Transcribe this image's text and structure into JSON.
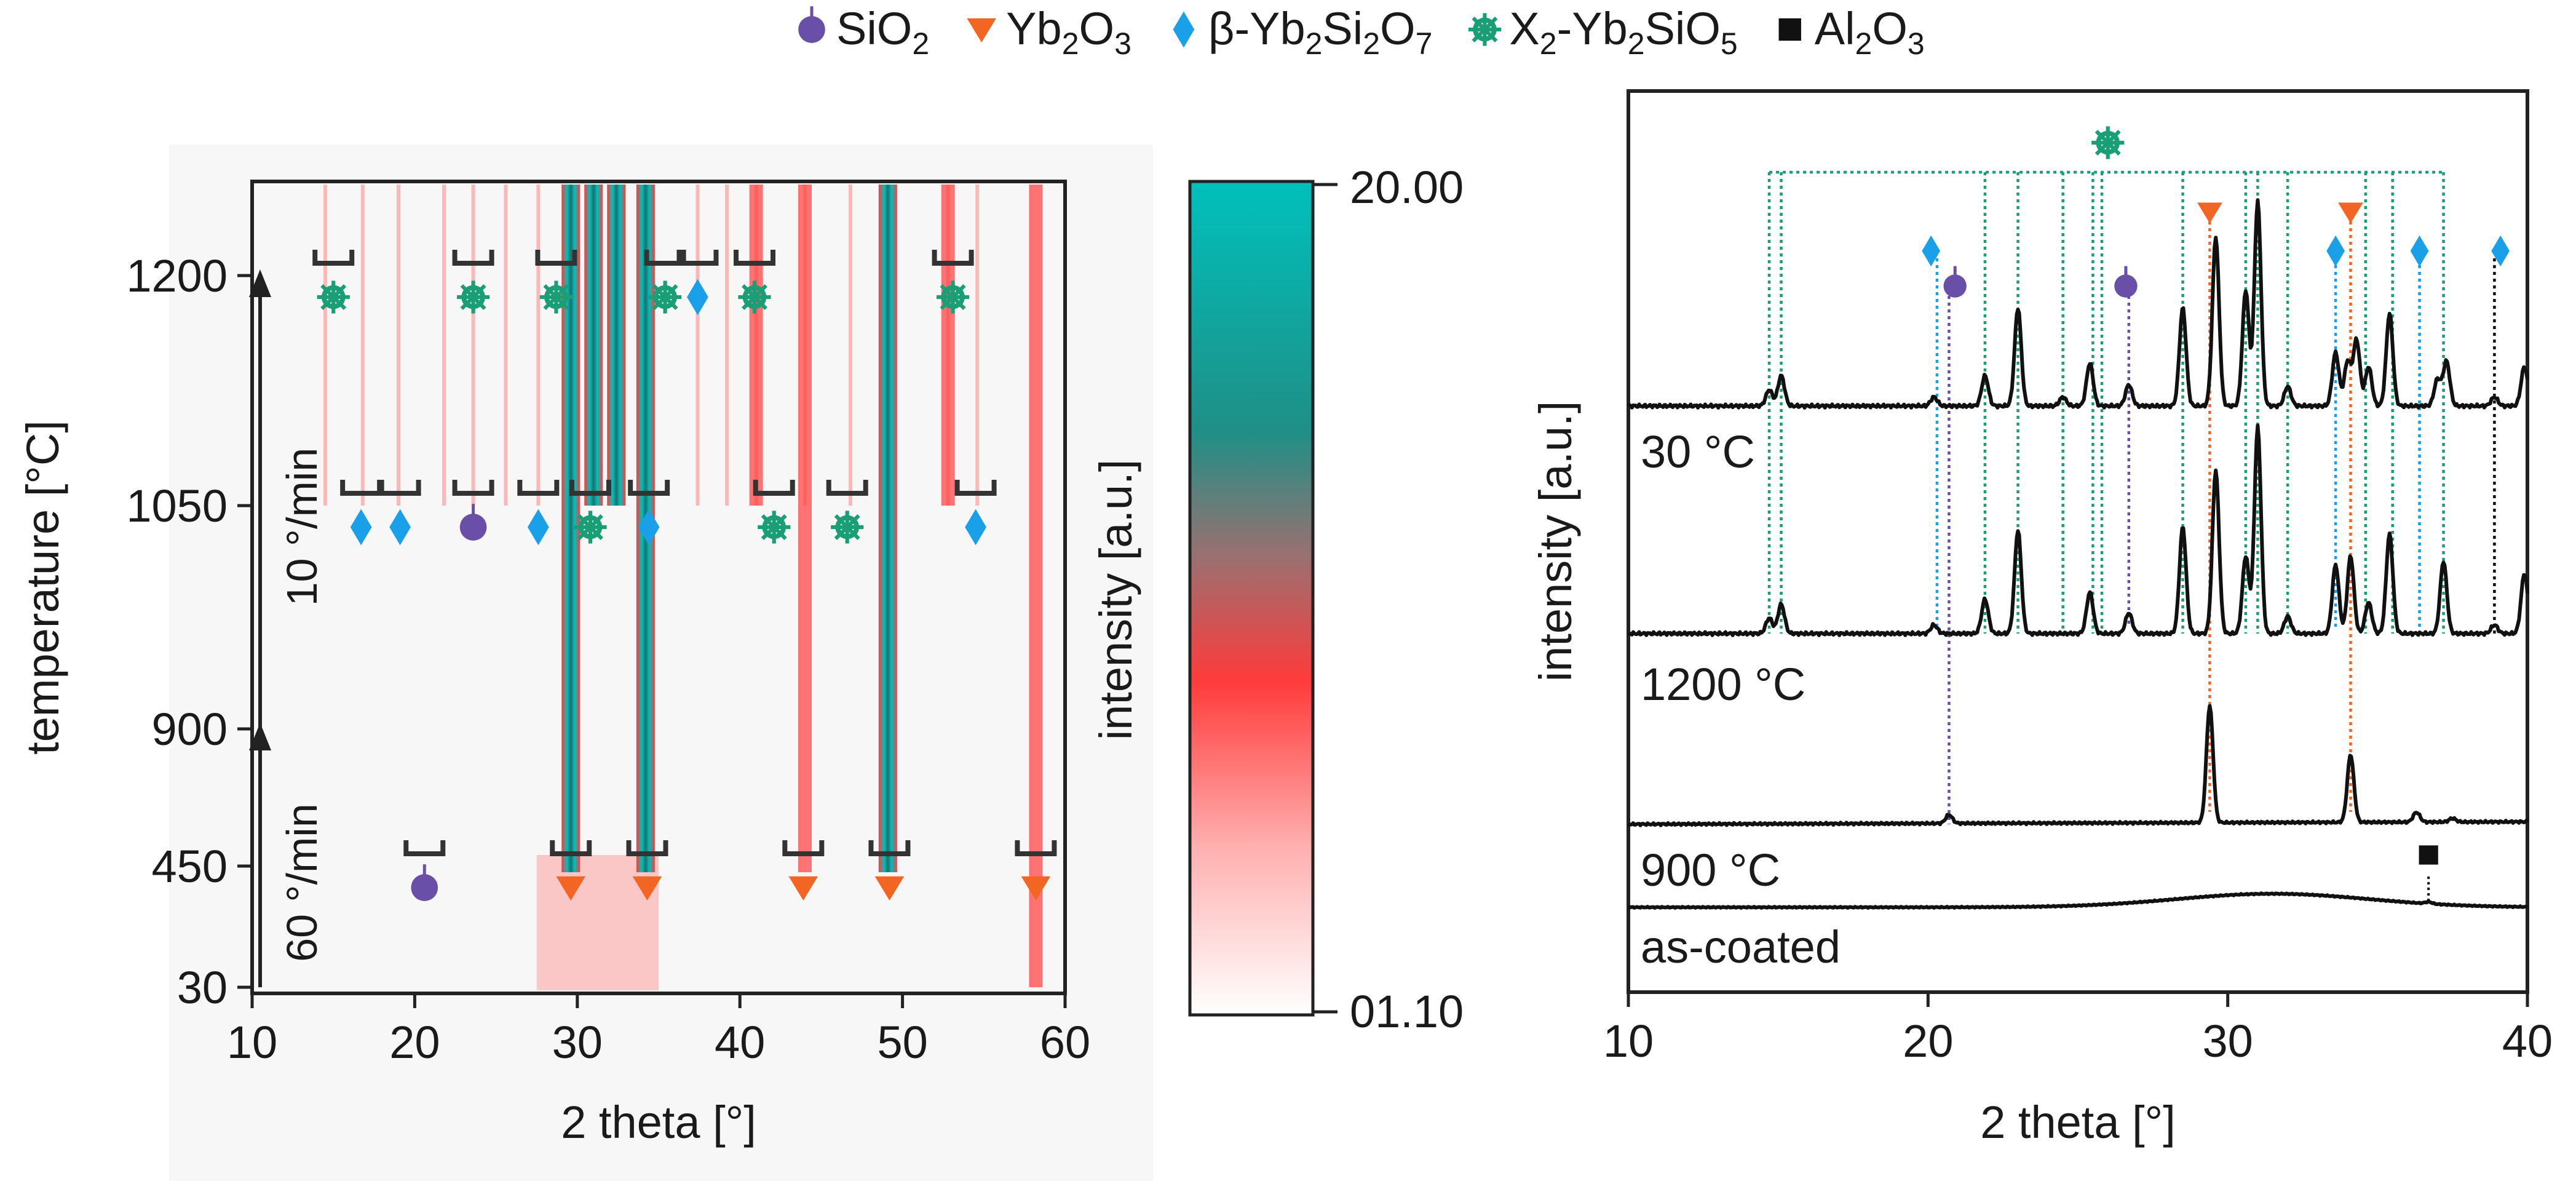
{
  "colors": {
    "sio2": "#6a4fa8",
    "yb2o3": "#f26522",
    "beta": "#1aa0e8",
    "x2": "#1a9e76",
    "al2o3": "#111111",
    "teal": "#00c0bc",
    "red": "#ff3b3b",
    "bracket": "#333333"
  },
  "legend": {
    "items": [
      {
        "id": "sio2",
        "marker": "purple-circle-icon",
        "label": "SiO",
        "sub": "2",
        "label2": "",
        "sub2": ""
      },
      {
        "id": "yb2o3",
        "marker": "orange-triangle-icon",
        "label": "Yb",
        "sub": "2",
        "label2": "O",
        "sub2": "3"
      },
      {
        "id": "beta",
        "marker": "blue-diamond-icon",
        "label": "β-Yb",
        "sub": "2",
        "label2": "Si",
        "sub2": "2",
        "label3": "O",
        "sub3": "7"
      },
      {
        "id": "x2",
        "marker": "green-asterisk-icon",
        "label": "X",
        "sub": "2",
        "label2": "-Yb",
        "sub2": "2",
        "label3": "SiO",
        "sub3": "5"
      },
      {
        "id": "al2o3",
        "marker": "black-square-icon",
        "label": "Al",
        "sub": "2",
        "label2": "O",
        "sub2": "3"
      }
    ]
  },
  "chart_data": [
    {
      "type": "heatmap",
      "title": "",
      "xlabel": "2 theta [°]",
      "ylabel": "temperature [°C]",
      "xlim": [
        10,
        60
      ],
      "x_ticks": [
        10,
        20,
        30,
        40,
        50,
        60
      ],
      "y_ticks": [
        "30",
        "450",
        "900",
        "1050",
        "1200"
      ],
      "colorbar": {
        "label": "intensity [a.u.]",
        "max_label": "20.00",
        "min_label": "01.10",
        "colors": [
          "#00c0bc",
          "#ff3b3b",
          "#ffffff"
        ]
      },
      "ramps": [
        {
          "rate": "60 °/min",
          "from": "30",
          "to": "900"
        },
        {
          "rate": "10 °/min",
          "from": "900",
          "to": "1200"
        }
      ],
      "intense_lines": [
        {
          "x": 29.6,
          "from": "450",
          "to": "1200",
          "level": "high"
        },
        {
          "x": 34.2,
          "from": "450",
          "to": "1200",
          "level": "high"
        },
        {
          "x": 49.1,
          "from": "450",
          "to": "1200",
          "level": "high"
        },
        {
          "x": 31.0,
          "from": "1050",
          "to": "1200",
          "level": "high"
        },
        {
          "x": 32.4,
          "from": "1050",
          "to": "1200",
          "level": "high"
        },
        {
          "x": 58.2,
          "from": "30",
          "to": "1200",
          "level": "medium"
        },
        {
          "x": 44.0,
          "from": "450",
          "to": "1200",
          "level": "medium"
        },
        {
          "x": 52.8,
          "from": "1050",
          "to": "1200",
          "level": "medium"
        },
        {
          "x": 41.0,
          "from": "1050",
          "to": "1200",
          "level": "medium"
        }
      ],
      "annotations": [
        {
          "level": "1200",
          "phase": "x2",
          "x": [
            15.0
          ]
        },
        {
          "level": "1200",
          "phase": "x2",
          "x": [
            23.6
          ]
        },
        {
          "level": "1200",
          "phase": "x2",
          "x": [
            28.7
          ]
        },
        {
          "level": "1200",
          "phase": "x2",
          "x": [
            35.4
          ]
        },
        {
          "level": "1200",
          "phase": "beta",
          "x": [
            37.4
          ]
        },
        {
          "level": "1200",
          "phase": "x2",
          "x": [
            40.9
          ]
        },
        {
          "level": "1200",
          "phase": "x2",
          "x": [
            53.1
          ]
        },
        {
          "level": "1050",
          "phase": "beta",
          "x": [
            16.7
          ]
        },
        {
          "level": "1050",
          "phase": "beta",
          "x": [
            19.1
          ]
        },
        {
          "level": "1050",
          "phase": "sio2",
          "x": [
            23.6
          ]
        },
        {
          "level": "1050",
          "phase": "beta",
          "x": [
            27.6
          ]
        },
        {
          "level": "1050",
          "phase": "x2",
          "x": [
            30.8
          ]
        },
        {
          "level": "1050",
          "phase": "beta",
          "x": [
            34.4
          ]
        },
        {
          "level": "1050",
          "phase": "x2",
          "x": [
            42.1
          ]
        },
        {
          "level": "1050",
          "phase": "x2",
          "x": [
            46.6
          ]
        },
        {
          "level": "1050",
          "phase": "beta",
          "x": [
            54.5
          ]
        },
        {
          "level": "450",
          "phase": "sio2",
          "x": [
            20.6
          ]
        },
        {
          "level": "450",
          "phase": "yb2o3",
          "x": [
            29.6
          ]
        },
        {
          "level": "450",
          "phase": "yb2o3",
          "x": [
            34.3
          ]
        },
        {
          "level": "450",
          "phase": "yb2o3",
          "x": [
            43.9
          ]
        },
        {
          "level": "450",
          "phase": "yb2o3",
          "x": [
            49.2
          ]
        },
        {
          "level": "450",
          "phase": "yb2o3",
          "x": [
            58.2
          ]
        }
      ]
    },
    {
      "type": "line",
      "title": "",
      "xlabel": "2 theta [°]",
      "ylabel": "intensity [a.u.]",
      "xlim": [
        10,
        40
      ],
      "x_ticks": [
        10,
        20,
        30,
        40
      ],
      "series": [
        {
          "name": "30 °C",
          "baseline": 0.35,
          "peaks": [
            [
              14.7,
              0.09
            ],
            [
              15.1,
              0.17
            ],
            [
              20.2,
              0.05
            ],
            [
              21.9,
              0.17
            ],
            [
              23.0,
              0.55
            ],
            [
              24.5,
              0.05
            ],
            [
              25.4,
              0.24
            ],
            [
              26.7,
              0.12
            ],
            [
              28.5,
              0.55
            ],
            [
              29.6,
              0.95
            ],
            [
              30.6,
              0.65
            ],
            [
              31.0,
              1.15
            ],
            [
              32.0,
              0.11
            ],
            [
              33.6,
              0.3
            ],
            [
              34.0,
              0.25
            ],
            [
              34.3,
              0.37
            ],
            [
              34.7,
              0.22
            ],
            [
              35.4,
              0.52
            ],
            [
              37.0,
              0.15
            ],
            [
              37.3,
              0.25
            ],
            [
              38.9,
              0.05
            ],
            [
              39.9,
              0.22
            ]
          ]
        },
        {
          "name": "1200 °C",
          "baseline": 0.55,
          "peaks": [
            [
              14.7,
              0.09
            ],
            [
              15.1,
              0.17
            ],
            [
              20.2,
              0.05
            ],
            [
              21.9,
              0.2
            ],
            [
              23.0,
              0.6
            ],
            [
              25.4,
              0.24
            ],
            [
              26.7,
              0.12
            ],
            [
              28.5,
              0.62
            ],
            [
              29.6,
              0.95
            ],
            [
              30.6,
              0.45
            ],
            [
              31.0,
              1.2
            ],
            [
              32.0,
              0.1
            ],
            [
              33.6,
              0.4
            ],
            [
              34.1,
              0.45
            ],
            [
              34.7,
              0.18
            ],
            [
              35.4,
              0.58
            ],
            [
              37.2,
              0.42
            ],
            [
              38.9,
              0.05
            ],
            [
              39.9,
              0.35
            ]
          ]
        },
        {
          "name": "900 °C",
          "baseline": 0.3,
          "peaks": [
            [
              20.7,
              0.07
            ],
            [
              29.4,
              0.95
            ],
            [
              34.1,
              0.55
            ],
            [
              36.3,
              0.08
            ],
            [
              37.5,
              0.03
            ]
          ]
        },
        {
          "name": "as-coated",
          "baseline": 0.1,
          "peaks": [
            [
              36.7,
              0.03
            ]
          ],
          "hump": [
            31.5,
            0.22
          ]
        }
      ],
      "guide_lines": [
        {
          "x": 14.7,
          "phase": "x2"
        },
        {
          "x": 15.1,
          "phase": "x2"
        },
        {
          "x": 21.9,
          "phase": "x2"
        },
        {
          "x": 23.0,
          "phase": "x2"
        },
        {
          "x": 24.5,
          "phase": "x2"
        },
        {
          "x": 25.5,
          "phase": "x2"
        },
        {
          "x": 25.8,
          "phase": "x2"
        },
        {
          "x": 28.5,
          "phase": "x2"
        },
        {
          "x": 30.6,
          "phase": "x2"
        },
        {
          "x": 31.0,
          "phase": "x2"
        },
        {
          "x": 32.0,
          "phase": "x2"
        },
        {
          "x": 34.6,
          "phase": "x2"
        },
        {
          "x": 35.5,
          "phase": "x2"
        },
        {
          "x": 37.2,
          "phase": "x2"
        },
        {
          "x": 20.3,
          "phase": "beta"
        },
        {
          "x": 33.6,
          "phase": "beta"
        },
        {
          "x": 36.4,
          "phase": "beta"
        },
        {
          "x": 20.7,
          "phase": "sio2"
        },
        {
          "x": 26.7,
          "phase": "sio2"
        },
        {
          "x": 29.4,
          "phase": "yb2o3"
        },
        {
          "x": 34.1,
          "phase": "yb2o3"
        },
        {
          "x": 38.9,
          "phase": "al2o3"
        }
      ],
      "markers": [
        {
          "phase": "x2",
          "x": 26.0,
          "row": "top"
        },
        {
          "phase": "yb2o3",
          "x": 29.4,
          "row": "upper"
        },
        {
          "phase": "yb2o3",
          "x": 34.1,
          "row": "upper"
        },
        {
          "phase": "beta",
          "x": 20.1,
          "row": "upper"
        },
        {
          "phase": "beta",
          "x": 33.6,
          "row": "upper"
        },
        {
          "phase": "beta",
          "x": 36.4,
          "row": "upper"
        },
        {
          "phase": "beta",
          "x": 39.1,
          "row": "upper"
        },
        {
          "phase": "sio2",
          "x": 20.9,
          "row": "lower"
        },
        {
          "phase": "sio2",
          "x": 26.6,
          "row": "lower"
        },
        {
          "phase": "al2o3",
          "x": 36.7,
          "row": "low"
        }
      ]
    }
  ]
}
